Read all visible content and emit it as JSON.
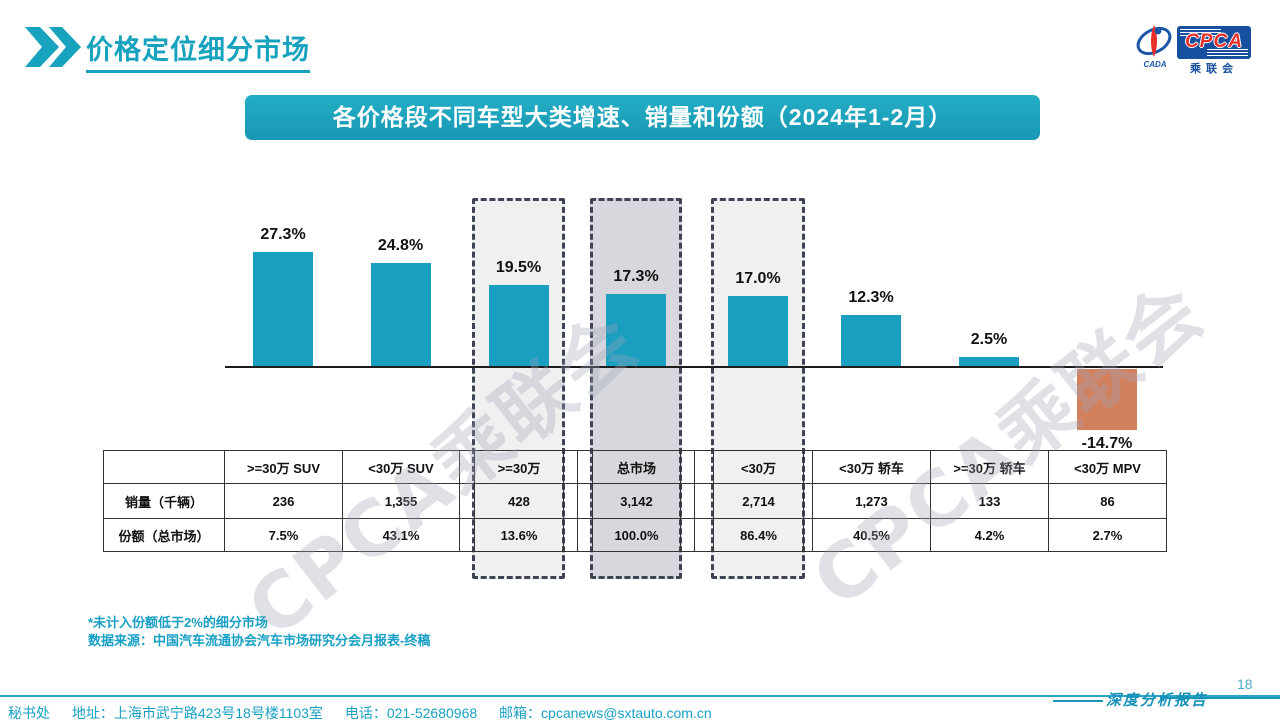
{
  "header": {
    "title": "价格定位细分市场",
    "logo": {
      "cada": "CADA",
      "cpca": "CPCA",
      "sub": "乘联会"
    }
  },
  "banner": {
    "title": "各价格段不同车型大类增速、销量和份额（2024年1-2月）"
  },
  "chart_data": {
    "type": "bar",
    "title": "各价格段不同车型大类增速、销量和份额（2024年1-2月）",
    "categories": [
      ">=30万 SUV",
      "<30万 SUV",
      ">=30万",
      "总市场",
      "<30万",
      "<30万 轿车",
      ">=30万 轿车",
      "<30万 MPV"
    ],
    "values": [
      27.3,
      24.8,
      19.5,
      17.3,
      17.0,
      12.3,
      2.5,
      -14.7
    ],
    "value_labels": [
      "27.3%",
      "24.8%",
      "19.5%",
      "17.3%",
      "17.0%",
      "12.3%",
      "2.5%",
      "-14.7%"
    ],
    "unit": "%",
    "ylim": [
      -16,
      30
    ],
    "grid": false,
    "legend": false,
    "highlight": {
      "light": [
        2,
        4
      ],
      "dark": [
        3
      ]
    },
    "colors": {
      "bar_positive": "#1a9fc0",
      "bar_negative": "#d2815f",
      "box_border": "#3e4356",
      "box_light": "#f0f0f1",
      "box_dark": "#d7d7dd",
      "accent": "#17a2be"
    },
    "table": {
      "row_headers": [
        "销量（千辆）",
        "份额（总市场）"
      ],
      "rows": [
        [
          "236",
          "1,355",
          "428",
          "3,142",
          "2,714",
          "1,273",
          "133",
          "86"
        ],
        [
          "7.5%",
          "43.1%",
          "13.6%",
          "100.0%",
          "86.4%",
          "40.5%",
          "4.2%",
          "2.7%"
        ]
      ]
    }
  },
  "watermark": "CPCA乘联会",
  "footnotes": {
    "line1": "*未计入份额低于2%的细分市场",
    "line2": "数据来源：中国汽车流通协会汽车市场研究分会月报表-终稿"
  },
  "footer": {
    "secretariat": "秘书处",
    "address": "地址：上海市武宁路423号18号楼1103室",
    "phone": "电话：021-52680968",
    "email": "邮箱：cpcanews@sxtauto.com.cn",
    "page": "18",
    "report": "深度分析报告"
  }
}
